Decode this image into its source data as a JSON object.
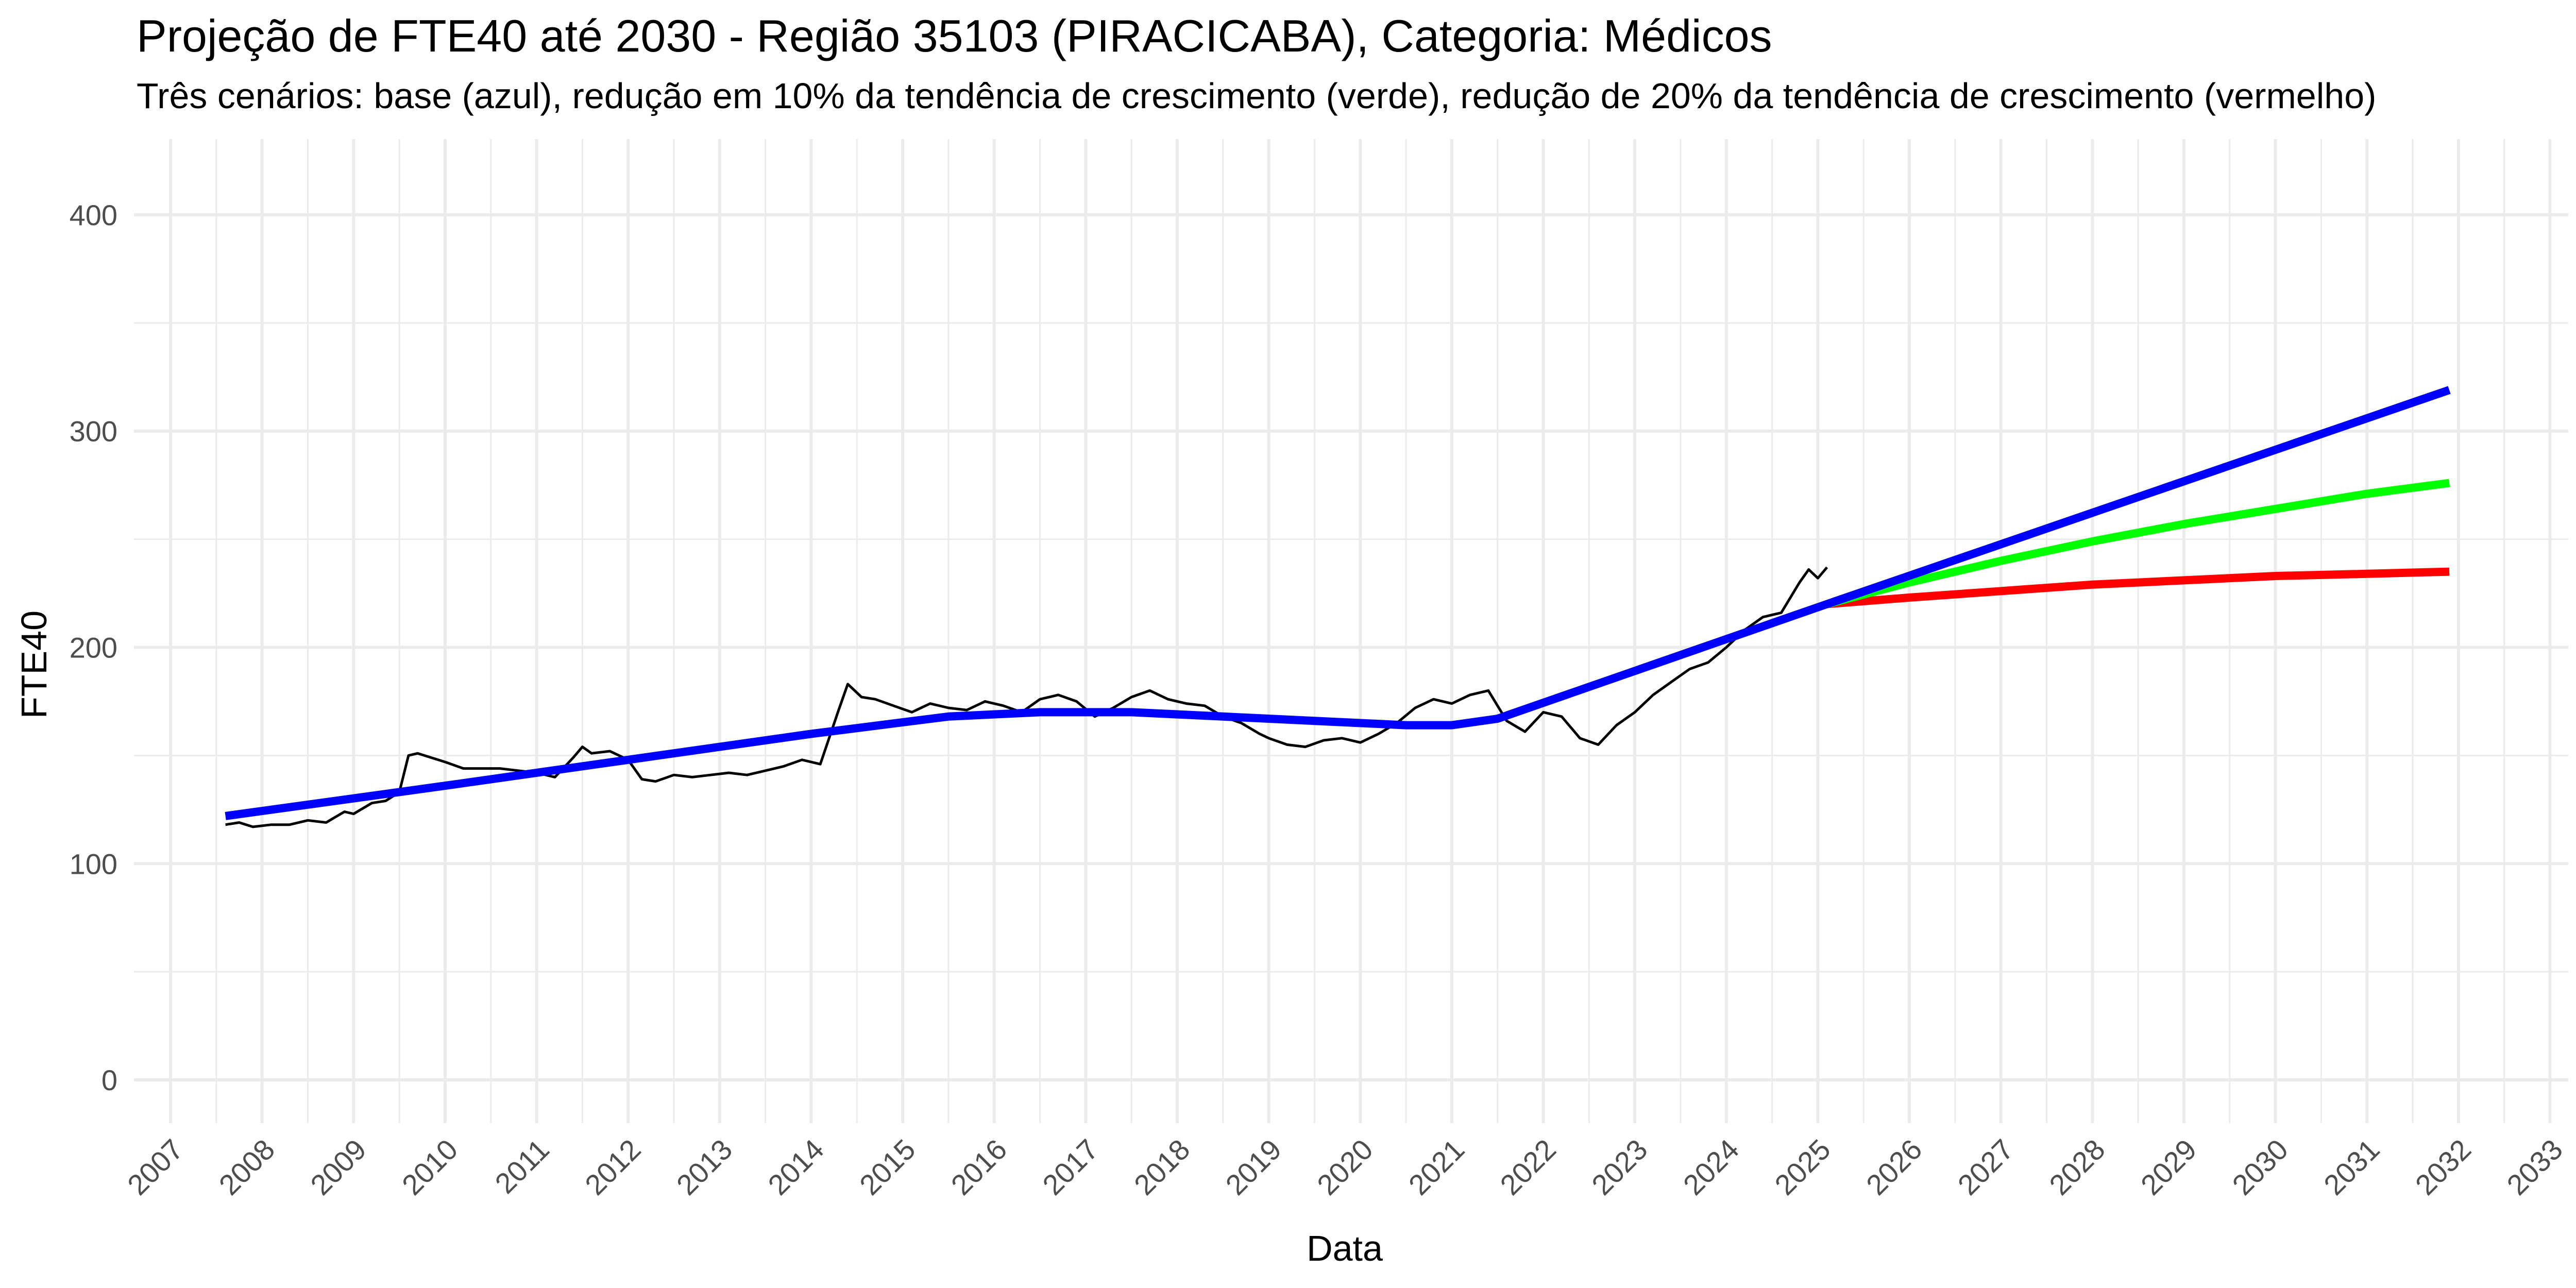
{
  "chart_data": {
    "type": "line",
    "title": "Projeção de FTE40 até 2030 - Região 35103 (PIRACICABA), Categoria: Médicos",
    "subtitle": "Três cenários: base (azul), redução em 10% da tendência de crescimento (verde), redução de 20% da tendência de crescimento (vermelho)",
    "xlabel": "Data",
    "ylabel": "FTE40",
    "xlim": [
      2006.6,
      2033.2
    ],
    "ylim": [
      -20,
      435
    ],
    "x_ticks": [
      2007,
      2008,
      2009,
      2010,
      2011,
      2012,
      2013,
      2014,
      2015,
      2016,
      2017,
      2018,
      2019,
      2020,
      2021,
      2022,
      2023,
      2024,
      2025,
      2026,
      2027,
      2028,
      2029,
      2030,
      2031,
      2032,
      2033
    ],
    "y_ticks": [
      0,
      100,
      200,
      300,
      400
    ],
    "grid": true,
    "colors": {
      "observed": "#000000",
      "base": "#0000ff",
      "reduction_10": "#00ff00",
      "reduction_20": "#ff0000",
      "grid": "#ebebeb"
    },
    "series": [
      {
        "key": "observed",
        "x": [
          2007.6,
          2007.75,
          2007.9,
          2008.1,
          2008.3,
          2008.5,
          2008.7,
          2008.9,
          2009.0,
          2009.2,
          2009.35,
          2009.5,
          2009.6,
          2009.7,
          2009.85,
          2010.0,
          2010.2,
          2010.4,
          2010.6,
          2010.8,
          2011.0,
          2011.2,
          2011.4,
          2011.5,
          2011.6,
          2011.8,
          2012.0,
          2012.15,
          2012.3,
          2012.5,
          2012.7,
          2012.9,
          2013.1,
          2013.3,
          2013.5,
          2013.7,
          2013.9,
          2014.1,
          2014.3,
          2014.4,
          2014.55,
          2014.7,
          2014.9,
          2015.1,
          2015.3,
          2015.5,
          2015.7,
          2015.9,
          2016.1,
          2016.3,
          2016.5,
          2016.7,
          2016.9,
          2017.1,
          2017.3,
          2017.5,
          2017.7,
          2017.9,
          2018.1,
          2018.3,
          2018.5,
          2018.7,
          2018.9,
          2019.0,
          2019.2,
          2019.4,
          2019.6,
          2019.8,
          2020.0,
          2020.2,
          2020.4,
          2020.6,
          2020.8,
          2021.0,
          2021.2,
          2021.4,
          2021.6,
          2021.8,
          2022.0,
          2022.2,
          2022.4,
          2022.6,
          2022.8,
          2023.0,
          2023.2,
          2023.4,
          2023.6,
          2023.8,
          2024.0,
          2024.2,
          2024.4,
          2024.6,
          2024.8,
          2024.9,
          2025.0,
          2025.1
        ],
        "y": [
          118,
          119,
          117,
          118,
          118,
          120,
          119,
          124,
          123,
          128,
          129,
          133,
          150,
          151,
          149,
          147,
          144,
          144,
          144,
          143,
          142,
          140,
          149,
          154,
          151,
          152,
          148,
          139,
          138,
          141,
          140,
          141,
          142,
          141,
          143,
          145,
          148,
          146,
          171,
          183,
          177,
          176,
          173,
          170,
          174,
          172,
          171,
          175,
          173,
          170,
          176,
          178,
          175,
          168,
          172,
          177,
          180,
          176,
          174,
          173,
          168,
          165,
          160,
          158,
          155,
          154,
          157,
          158,
          156,
          160,
          165,
          172,
          176,
          174,
          178,
          180,
          166,
          161,
          170,
          168,
          158,
          155,
          164,
          170,
          178,
          184,
          190,
          193,
          200,
          208,
          214,
          216,
          230,
          236,
          232,
          237
        ]
      },
      {
        "key": "base",
        "x": [
          2007.6,
          2010.0,
          2012.0,
          2014.0,
          2015.5,
          2016.5,
          2017.5,
          2018.5,
          2019.5,
          2020.5,
          2021.0,
          2021.5,
          2025.1,
          2031.9
        ],
        "y": [
          122,
          136,
          148,
          160,
          168,
          170,
          170,
          168,
          166,
          164,
          164,
          167,
          220,
          319
        ]
      },
      {
        "key": "reduction_10",
        "x": [
          2025.1,
          2026.0,
          2027.0,
          2028.0,
          2029.0,
          2030.0,
          2031.0,
          2031.9
        ],
        "y": [
          220,
          230,
          240,
          249,
          257,
          264,
          271,
          276
        ]
      },
      {
        "key": "reduction_20",
        "x": [
          2025.1,
          2026.0,
          2027.0,
          2028.0,
          2029.0,
          2030.0,
          2031.0,
          2031.9
        ],
        "y": [
          220,
          223,
          226,
          229,
          231,
          233,
          234,
          235
        ]
      }
    ]
  }
}
